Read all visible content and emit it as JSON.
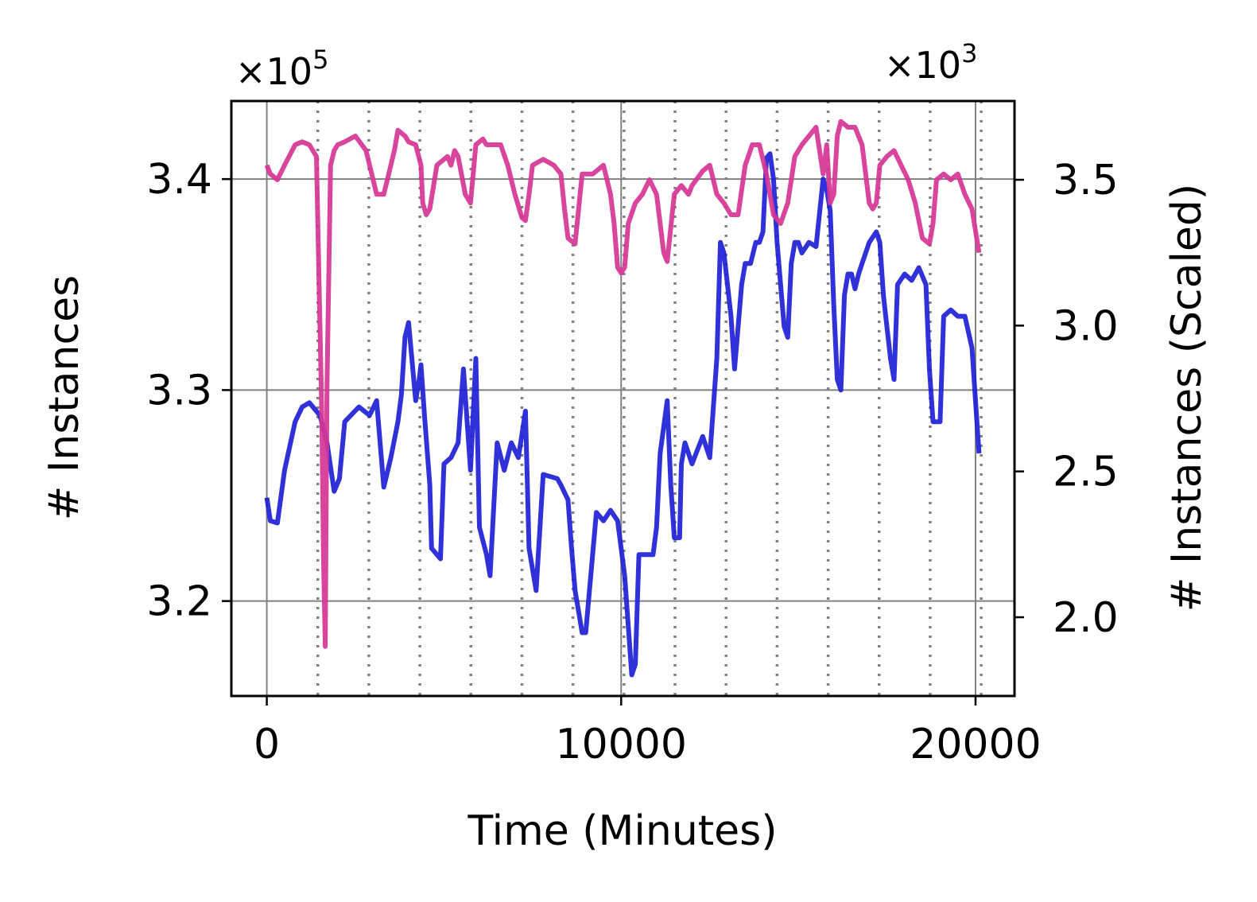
{
  "chart_data": {
    "type": "line",
    "title": "",
    "xlabel": "Time (Minutes)",
    "ylabel": "# Instances",
    "y2label": "# Instances (Scaled)",
    "y_multiplier": "×10",
    "y_multiplier_exp": "5",
    "y2_multiplier": "×10",
    "y2_multiplier_exp": "3",
    "xlim": [
      -1000,
      21100
    ],
    "ylim": [
      3.155,
      3.437
    ],
    "y2lim": [
      1.73,
      3.77
    ],
    "xticks": [
      0,
      10000,
      20000
    ],
    "xtick_labels": [
      "0",
      "10000",
      "20000"
    ],
    "yticks": [
      3.2,
      3.3,
      3.4
    ],
    "ytick_labels": [
      "3.2",
      "3.3",
      "3.4"
    ],
    "y2ticks": [
      2.0,
      2.5,
      3.0,
      3.5
    ],
    "y2tick_labels": [
      "2.0",
      "2.5",
      "3.0",
      "3.5"
    ],
    "grid": true,
    "vlines_dotted": [
      1440,
      2880,
      4320,
      5760,
      7200,
      8640,
      10080,
      11520,
      12960,
      14400,
      15840,
      17280,
      18720,
      20160
    ],
    "colors": {
      "left_series": "#2020d6",
      "right_series": "#d63594",
      "grid": "#808080",
      "vline": "#808080"
    },
    "series": [
      {
        "axis": "left",
        "x": [
          0,
          100,
          300,
          500,
          800,
          1000,
          1200,
          1500,
          1700,
          1900,
          2050,
          2200,
          2600,
          2900,
          3100,
          3300,
          3500,
          3700,
          3800,
          3900,
          4000,
          4200,
          4300,
          4350,
          4450,
          4600,
          4650,
          4900,
          5000,
          5200,
          5400,
          5550,
          5750,
          5900,
          6000,
          6200,
          6300,
          6500,
          6700,
          6900,
          7100,
          7300,
          7400,
          7600,
          7800,
          8200,
          8300,
          8500,
          8600,
          8700,
          8900,
          9000,
          9300,
          9500,
          9700,
          9900,
          10100,
          10300,
          10400,
          10500,
          10700,
          10900,
          11000,
          11100,
          11300,
          11400,
          11500,
          11650,
          11700,
          11800,
          12000,
          12300,
          12500,
          12700,
          12800,
          12900,
          13000,
          13100,
          13200,
          13300,
          13400,
          13500,
          13650,
          13800,
          13900,
          14000,
          14100,
          14200,
          14300,
          14400,
          14500,
          14600,
          14700,
          14800,
          14900,
          15000,
          15100,
          15300,
          15500,
          15700,
          15800,
          15900,
          16000,
          16100,
          16200,
          16300,
          16400,
          16500,
          16600,
          16700,
          16800,
          17000,
          17200,
          17300,
          17400,
          17500,
          17600,
          17700,
          17800,
          18000,
          18200,
          18400,
          18600,
          18700,
          18800,
          19000,
          19100,
          19300,
          19500,
          19700,
          19900,
          20100
        ],
        "y": [
          3.249,
          3.238,
          3.237,
          3.262,
          3.285,
          3.292,
          3.294,
          3.288,
          3.275,
          3.252,
          3.258,
          3.285,
          3.292,
          3.288,
          3.295,
          3.254,
          3.268,
          3.285,
          3.298,
          3.325,
          3.332,
          3.295,
          3.305,
          3.312,
          3.288,
          3.255,
          3.225,
          3.22,
          3.265,
          3.268,
          3.275,
          3.31,
          3.262,
          3.315,
          3.235,
          3.222,
          3.212,
          3.275,
          3.262,
          3.275,
          3.268,
          3.29,
          3.225,
          3.205,
          3.26,
          3.258,
          3.255,
          3.248,
          3.225,
          3.205,
          3.185,
          3.185,
          3.242,
          3.238,
          3.243,
          3.238,
          3.212,
          3.165,
          3.17,
          3.222,
          3.222,
          3.222,
          3.235,
          3.27,
          3.295,
          3.255,
          3.23,
          3.23,
          3.265,
          3.275,
          3.265,
          3.278,
          3.268,
          3.315,
          3.37,
          3.365,
          3.35,
          3.335,
          3.31,
          3.33,
          3.35,
          3.36,
          3.36,
          3.37,
          3.37,
          3.375,
          3.41,
          3.412,
          3.4,
          3.37,
          3.35,
          3.33,
          3.325,
          3.36,
          3.37,
          3.37,
          3.365,
          3.37,
          3.368,
          3.4,
          3.395,
          3.385,
          3.34,
          3.305,
          3.3,
          3.345,
          3.355,
          3.355,
          3.348,
          3.355,
          3.36,
          3.37,
          3.375,
          3.37,
          3.345,
          3.33,
          3.315,
          3.305,
          3.35,
          3.355,
          3.352,
          3.358,
          3.35,
          3.31,
          3.285,
          3.285,
          3.335,
          3.338,
          3.335,
          3.335,
          3.32,
          3.27
        ]
      },
      {
        "axis": "right",
        "x": [
          0,
          100,
          300,
          500,
          800,
          1000,
          1200,
          1400,
          1550,
          1600,
          1650,
          1700,
          1800,
          1900,
          2000,
          2200,
          2500,
          2800,
          3000,
          3100,
          3300,
          3500,
          3600,
          3700,
          3800,
          3900,
          4000,
          4200,
          4350,
          4400,
          4500,
          4600,
          4800,
          5000,
          5100,
          5200,
          5300,
          5400,
          5600,
          5750,
          5900,
          6000,
          6100,
          6200,
          6400,
          6600,
          6800,
          7000,
          7200,
          7300,
          7400,
          7500,
          7800,
          8100,
          8300,
          8400,
          8500,
          8700,
          8900,
          9200,
          9500,
          9700,
          9800,
          9900,
          10000,
          10100,
          10200,
          10400,
          10600,
          10800,
          11000,
          11100,
          11200,
          11300,
          11500,
          11700,
          11900,
          12000,
          12300,
          12500,
          12700,
          12900,
          13100,
          13300,
          13500,
          13700,
          13900,
          14100,
          14300,
          14500,
          14700,
          14900,
          15100,
          15300,
          15500,
          15700,
          15800,
          15900,
          16000,
          16100,
          16200,
          16400,
          16600,
          16800,
          17000,
          17100,
          17200,
          17300,
          17500,
          17700,
          17900,
          18100,
          18300,
          18500,
          18700,
          18800,
          18900,
          19100,
          19300,
          19500,
          19700,
          19900,
          20100
        ],
        "y": [
          3.55,
          3.52,
          3.5,
          3.55,
          3.62,
          3.63,
          3.62,
          3.58,
          2.7,
          2.2,
          1.9,
          2.8,
          3.55,
          3.6,
          3.62,
          3.63,
          3.65,
          3.6,
          3.5,
          3.45,
          3.45,
          3.55,
          3.6,
          3.67,
          3.66,
          3.65,
          3.63,
          3.62,
          3.55,
          3.42,
          3.38,
          3.4,
          3.55,
          3.57,
          3.58,
          3.55,
          3.6,
          3.58,
          3.45,
          3.42,
          3.62,
          3.63,
          3.64,
          3.62,
          3.62,
          3.62,
          3.55,
          3.45,
          3.37,
          3.36,
          3.45,
          3.55,
          3.57,
          3.55,
          3.52,
          3.4,
          3.3,
          3.28,
          3.52,
          3.52,
          3.55,
          3.45,
          3.35,
          3.2,
          3.18,
          3.2,
          3.35,
          3.42,
          3.45,
          3.5,
          3.45,
          3.35,
          3.25,
          3.22,
          3.45,
          3.48,
          3.45,
          3.48,
          3.53,
          3.55,
          3.45,
          3.42,
          3.38,
          3.38,
          3.55,
          3.62,
          3.62,
          3.52,
          3.38,
          3.35,
          3.42,
          3.58,
          3.62,
          3.65,
          3.68,
          3.52,
          3.62,
          3.42,
          3.45,
          3.65,
          3.7,
          3.68,
          3.68,
          3.62,
          3.42,
          3.4,
          3.42,
          3.55,
          3.58,
          3.6,
          3.55,
          3.5,
          3.42,
          3.3,
          3.28,
          3.35,
          3.5,
          3.52,
          3.5,
          3.52,
          3.45,
          3.4,
          3.25
        ]
      }
    ]
  }
}
